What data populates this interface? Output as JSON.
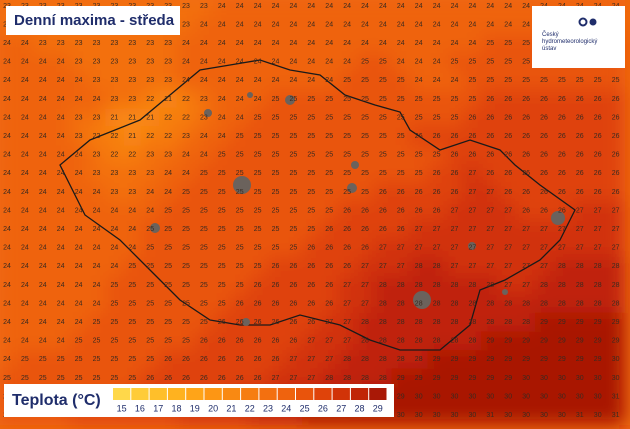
{
  "header": {
    "title": "Denní maxima - středa"
  },
  "logo": {
    "text": [
      "Český",
      "hydrometeorologický",
      "ústav"
    ]
  },
  "legend": {
    "title": "Teplota (°C)",
    "values": [
      15,
      16,
      17,
      18,
      19,
      20,
      21,
      22,
      23,
      24,
      25,
      26,
      27,
      28,
      29
    ],
    "colors": [
      "#ffd84a",
      "#ffcc38",
      "#ffbf2a",
      "#ffb21f",
      "#ffa418",
      "#fd9614",
      "#f98912",
      "#f67d11",
      "#f37010",
      "#ef630e",
      "#e9540c",
      "#df430a",
      "#d13308",
      "#c02407",
      "#a91806"
    ]
  },
  "grid": {
    "rows": [
      [
        23,
        23,
        23,
        23,
        23,
        23,
        23,
        23,
        23,
        23,
        23,
        23,
        24,
        24,
        24,
        24,
        24,
        24,
        24,
        24,
        24,
        24,
        24,
        24,
        24,
        24,
        24,
        24,
        24,
        24,
        24,
        24,
        24,
        24,
        24
      ],
      [
        23,
        23,
        23,
        23,
        23,
        23,
        23,
        23,
        23,
        23,
        23,
        24,
        24,
        24,
        24,
        24,
        24,
        24,
        24,
        24,
        24,
        24,
        24,
        24,
        24,
        24,
        24,
        24,
        24,
        24,
        24,
        24,
        24,
        24,
        24
      ],
      [
        24,
        24,
        23,
        23,
        23,
        23,
        23,
        23,
        23,
        23,
        24,
        24,
        24,
        24,
        24,
        24,
        24,
        24,
        24,
        24,
        24,
        24,
        24,
        24,
        24,
        24,
        24,
        25,
        25,
        25,
        25,
        25,
        25,
        25,
        25
      ],
      [
        24,
        24,
        24,
        24,
        23,
        23,
        23,
        23,
        23,
        23,
        24,
        24,
        24,
        24,
        24,
        24,
        24,
        24,
        24,
        24,
        25,
        25,
        24,
        24,
        24,
        25,
        25,
        25,
        25,
        25,
        25,
        25,
        25,
        25,
        25
      ],
      [
        24,
        24,
        24,
        24,
        24,
        23,
        23,
        23,
        23,
        23,
        24,
        24,
        24,
        24,
        24,
        24,
        24,
        24,
        24,
        25,
        25,
        25,
        25,
        24,
        24,
        24,
        25,
        25,
        25,
        25,
        25,
        25,
        25,
        25,
        25
      ],
      [
        24,
        24,
        24,
        24,
        24,
        24,
        23,
        23,
        22,
        21,
        22,
        23,
        24,
        24,
        24,
        25,
        25,
        25,
        25,
        25,
        25,
        25,
        25,
        25,
        25,
        25,
        25,
        26,
        26,
        26,
        26,
        26,
        26,
        26,
        26
      ],
      [
        24,
        24,
        24,
        24,
        23,
        23,
        21,
        21,
        21,
        22,
        22,
        23,
        24,
        24,
        25,
        25,
        25,
        25,
        25,
        25,
        25,
        25,
        25,
        25,
        25,
        25,
        26,
        26,
        26,
        26,
        26,
        26,
        26,
        26,
        26
      ],
      [
        24,
        24,
        24,
        24,
        23,
        22,
        22,
        21,
        22,
        22,
        23,
        24,
        24,
        25,
        25,
        25,
        25,
        25,
        25,
        25,
        25,
        25,
        25,
        26,
        26,
        26,
        26,
        26,
        26,
        26,
        26,
        26,
        26,
        26,
        26
      ],
      [
        24,
        24,
        24,
        24,
        24,
        23,
        22,
        22,
        23,
        23,
        24,
        24,
        25,
        25,
        25,
        25,
        25,
        25,
        25,
        25,
        25,
        25,
        25,
        25,
        25,
        26,
        26,
        26,
        26,
        26,
        26,
        26,
        26,
        26,
        26
      ],
      [
        24,
        24,
        24,
        24,
        24,
        23,
        23,
        23,
        23,
        24,
        24,
        25,
        25,
        25,
        25,
        25,
        25,
        25,
        25,
        25,
        25,
        25,
        25,
        25,
        26,
        26,
        27,
        26,
        26,
        26,
        26,
        26,
        26,
        26,
        26
      ],
      [
        24,
        24,
        24,
        24,
        24,
        24,
        23,
        23,
        24,
        24,
        25,
        25,
        25,
        25,
        25,
        25,
        25,
        25,
        25,
        25,
        25,
        26,
        26,
        26,
        26,
        26,
        27,
        27,
        26,
        26,
        26,
        26,
        26,
        26,
        26
      ],
      [
        24,
        24,
        24,
        24,
        24,
        24,
        24,
        24,
        24,
        25,
        25,
        25,
        25,
        25,
        25,
        25,
        25,
        25,
        25,
        26,
        26,
        26,
        26,
        26,
        26,
        27,
        27,
        27,
        27,
        26,
        26,
        26,
        27,
        27,
        27
      ],
      [
        24,
        24,
        24,
        24,
        24,
        24,
        24,
        24,
        25,
        25,
        25,
        25,
        25,
        25,
        25,
        25,
        25,
        25,
        26,
        26,
        26,
        26,
        26,
        27,
        27,
        27,
        27,
        27,
        27,
        27,
        27,
        27,
        27,
        27,
        27
      ],
      [
        24,
        24,
        24,
        24,
        24,
        24,
        24,
        24,
        25,
        25,
        25,
        25,
        25,
        25,
        25,
        25,
        25,
        26,
        26,
        26,
        26,
        27,
        27,
        27,
        27,
        27,
        27,
        27,
        27,
        27,
        27,
        27,
        27,
        27,
        27
      ],
      [
        24,
        24,
        24,
        24,
        24,
        24,
        24,
        25,
        25,
        25,
        25,
        25,
        25,
        25,
        25,
        26,
        26,
        26,
        26,
        26,
        27,
        27,
        27,
        28,
        28,
        27,
        27,
        27,
        27,
        27,
        27,
        28,
        28,
        28,
        28
      ],
      [
        24,
        24,
        24,
        24,
        24,
        24,
        25,
        25,
        25,
        25,
        25,
        25,
        25,
        25,
        26,
        26,
        26,
        26,
        26,
        27,
        27,
        28,
        28,
        28,
        28,
        28,
        28,
        28,
        27,
        27,
        28,
        28,
        28,
        28,
        28
      ],
      [
        24,
        24,
        24,
        24,
        24,
        24,
        25,
        25,
        25,
        25,
        25,
        25,
        25,
        26,
        26,
        26,
        26,
        26,
        26,
        27,
        27,
        28,
        28,
        28,
        28,
        28,
        28,
        28,
        28,
        28,
        28,
        28,
        28,
        28,
        28
      ],
      [
        24,
        24,
        24,
        24,
        24,
        25,
        25,
        25,
        25,
        25,
        25,
        25,
        26,
        26,
        26,
        26,
        26,
        26,
        27,
        27,
        28,
        28,
        28,
        28,
        28,
        28,
        28,
        28,
        28,
        28,
        29,
        29,
        29,
        29,
        29
      ],
      [
        24,
        24,
        24,
        24,
        25,
        25,
        25,
        25,
        25,
        25,
        25,
        26,
        26,
        26,
        26,
        26,
        26,
        27,
        27,
        27,
        28,
        28,
        28,
        28,
        28,
        28,
        28,
        29,
        29,
        29,
        29,
        29,
        29,
        29,
        29
      ],
      [
        24,
        25,
        25,
        25,
        25,
        25,
        25,
        25,
        25,
        26,
        26,
        26,
        26,
        26,
        26,
        26,
        27,
        27,
        27,
        28,
        28,
        28,
        28,
        28,
        29,
        29,
        29,
        29,
        29,
        29,
        29,
        29,
        29,
        29,
        30
      ],
      [
        25,
        25,
        25,
        25,
        25,
        25,
        25,
        25,
        26,
        26,
        26,
        26,
        26,
        26,
        26,
        27,
        27,
        27,
        28,
        28,
        28,
        28,
        29,
        29,
        29,
        29,
        29,
        29,
        29,
        30,
        30,
        30,
        30,
        30,
        30
      ],
      [
        25,
        25,
        25,
        25,
        25,
        25,
        25,
        26,
        26,
        26,
        26,
        26,
        26,
        27,
        27,
        27,
        28,
        28,
        28,
        28,
        29,
        29,
        29,
        30,
        30,
        30,
        30,
        30,
        30,
        30,
        30,
        30,
        30,
        30,
        31
      ],
      [
        25,
        25,
        25,
        25,
        26,
        26,
        26,
        26,
        26,
        26,
        27,
        27,
        27,
        27,
        28,
        28,
        28,
        29,
        29,
        29,
        30,
        30,
        30,
        30,
        30,
        30,
        30,
        31,
        30,
        30,
        30,
        30,
        31,
        30,
        31
      ]
    ]
  }
}
